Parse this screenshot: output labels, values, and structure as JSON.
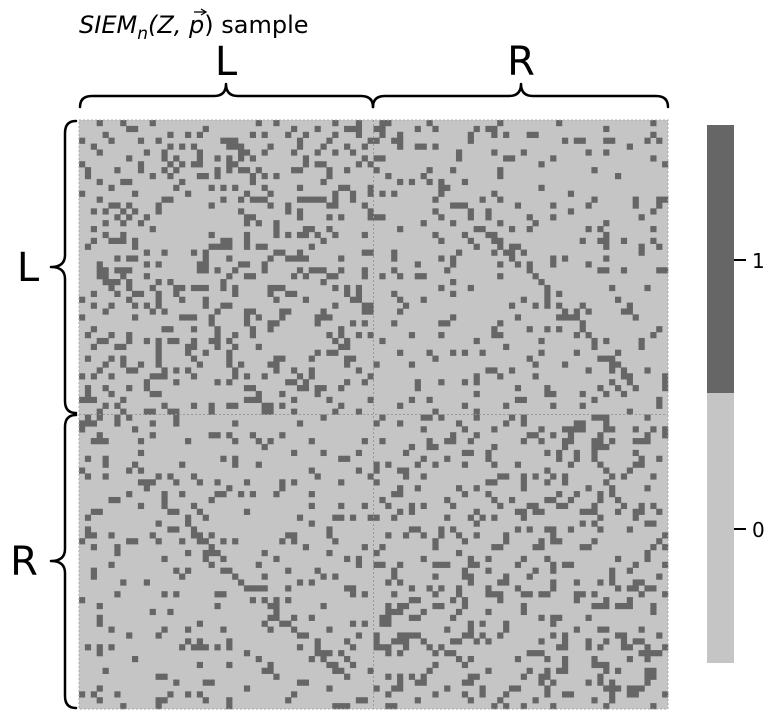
{
  "chart_data": {
    "type": "heatmap",
    "title": {
      "main": "SIEM",
      "sub": "n",
      "args": "(Z, ",
      "vec": "p",
      "close": ")",
      "suffix": " sample"
    },
    "n": 100,
    "blocks": [
      "L",
      "R"
    ],
    "block_sizes": [
      50,
      50
    ],
    "within_block_density": 0.2,
    "between_block_density": 0.1,
    "colorbar": {
      "levels": [
        0,
        1
      ],
      "tick_labels": [
        "0",
        "1"
      ]
    },
    "colors": {
      "0": "#c5c5c5",
      "1": "#666666"
    },
    "grid": false
  }
}
